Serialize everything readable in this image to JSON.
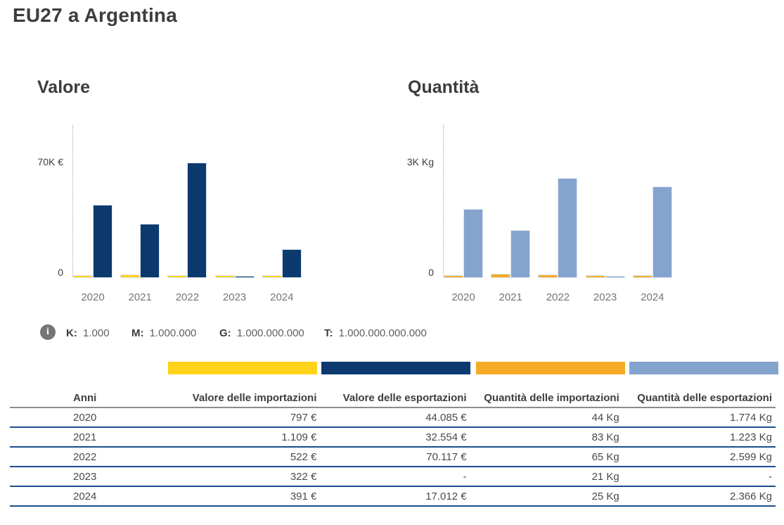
{
  "title": "EU27 a Argentina",
  "colors": {
    "import_value": "#FFD31A",
    "export_value": "#0C3A6E",
    "import_qty": "#F5AB26",
    "export_qty": "#84A4CE",
    "row_border": "#1B4E8A",
    "header_border": "#8C8C8C"
  },
  "chart_data": [
    {
      "type": "bar",
      "title": "Valore",
      "unit": "€",
      "categories": [
        "2020",
        "2021",
        "2022",
        "2023",
        "2024"
      ],
      "series": [
        {
          "key": "valore-importazioni",
          "name": "Valore delle importazioni",
          "color": "#FFD31A",
          "values": [
            797,
            1109,
            522,
            322,
            391
          ]
        },
        {
          "key": "valore-esportazioni",
          "name": "Valore delle esportazioni",
          "color": "#0C3A6E",
          "values": [
            44085,
            32554,
            70117,
            null,
            17012
          ]
        }
      ],
      "axis": {
        "max_label": "70K €",
        "max_value": 70000,
        "zero_label": "0",
        "grid": "dotted-y-axis"
      },
      "legend_position": "none"
    },
    {
      "type": "bar",
      "title": "Quantità",
      "unit": "Kg",
      "categories": [
        "2020",
        "2021",
        "2022",
        "2023",
        "2024"
      ],
      "series": [
        {
          "key": "quantita-importazioni",
          "name": "Quantità delle importazioni",
          "color": "#F5AB26",
          "values": [
            44,
            83,
            65,
            21,
            25
          ]
        },
        {
          "key": "quantita-esportazioni",
          "name": "Quantità delle esportazioni",
          "color": "#84A4CE",
          "values": [
            1774,
            1223,
            2599,
            null,
            2366
          ]
        }
      ],
      "axis": {
        "max_label": "3K Kg",
        "max_value": 3000,
        "zero_label": "0",
        "grid": "dotted-y-axis"
      },
      "legend_position": "none"
    }
  ],
  "units": {
    "icon": "info-icon",
    "items": [
      {
        "label": "K:",
        "value": "1.000"
      },
      {
        "label": "M:",
        "value": "1.000.000"
      },
      {
        "label": "G:",
        "value": "1.000.000.000"
      },
      {
        "label": "T:",
        "value": "1.000.000.000.000"
      }
    ]
  },
  "table": {
    "columns": [
      {
        "label": "Anni"
      },
      {
        "label": "Valore delle importazioni",
        "color": "#FFD31A"
      },
      {
        "label": "Valore delle esportazioni",
        "color": "#0C3A6E"
      },
      {
        "label": "Quantità delle importazioni",
        "color": "#F5AB26"
      },
      {
        "label": "Quantità delle esportazioni",
        "color": "#84A4CE"
      }
    ],
    "rows": [
      [
        "2020",
        "797 €",
        "44.085 €",
        "44 Kg",
        "1.774 Kg"
      ],
      [
        "2021",
        "1.109 €",
        "32.554 €",
        "83 Kg",
        "1.223 Kg"
      ],
      [
        "2022",
        "522 €",
        "70.117 €",
        "65 Kg",
        "2.599 Kg"
      ],
      [
        "2023",
        "322 €",
        "-",
        "21 Kg",
        "-"
      ],
      [
        "2024",
        "391 €",
        "17.012 €",
        "25 Kg",
        "2.366 Kg"
      ]
    ]
  }
}
